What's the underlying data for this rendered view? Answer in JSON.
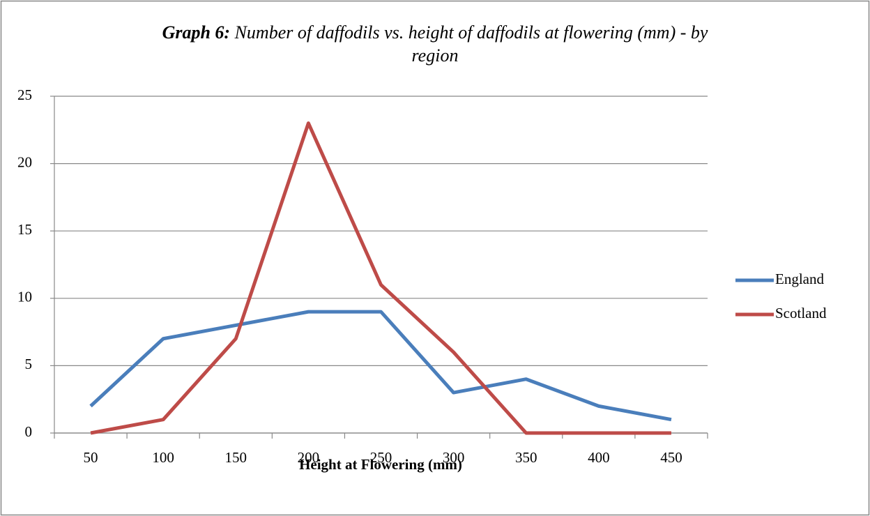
{
  "chart_data": {
    "type": "line",
    "title_prefix": "Graph 6:",
    "title": "Number of daffodils vs. height of daffodils at flowering (mm) - by region",
    "x_label": "Height at Flowering (mm)",
    "categories": [
      50,
      100,
      150,
      200,
      250,
      300,
      350,
      400,
      450
    ],
    "series": [
      {
        "name": "England",
        "color": "#4a7ebb",
        "values": [
          2,
          7,
          8,
          9,
          9,
          3,
          4,
          2,
          1
        ]
      },
      {
        "name": "Scotland",
        "color": "#be4b48",
        "values": [
          0,
          1,
          7,
          23,
          11,
          6,
          0,
          0,
          0
        ]
      }
    ],
    "ylim": [
      0,
      25
    ],
    "yticks": [
      0,
      5,
      10,
      15,
      20,
      25
    ],
    "grid": true,
    "legend": "right"
  }
}
